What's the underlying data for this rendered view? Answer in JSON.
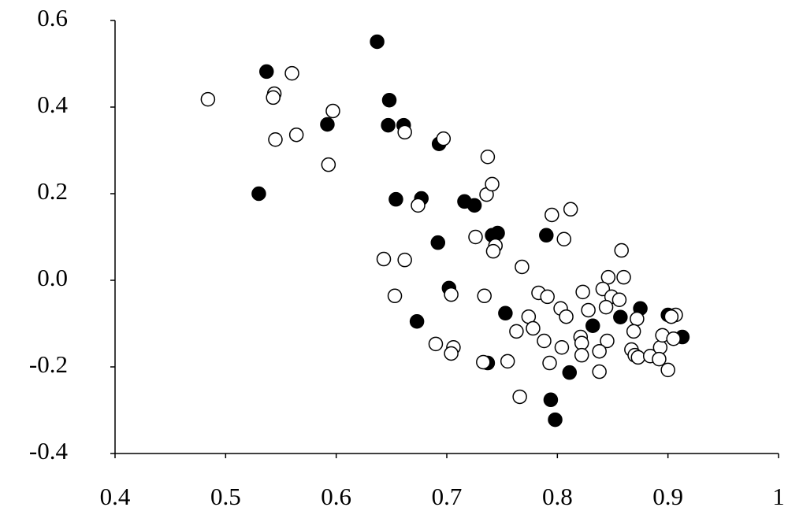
{
  "chart_data": {
    "type": "scatter",
    "xlim": [
      0.4,
      1
    ],
    "ylim": [
      -0.4,
      0.6
    ],
    "xticks": [
      0.4,
      0.5,
      0.6,
      0.7,
      0.8,
      0.9,
      1
    ],
    "yticks": [
      -0.4,
      -0.2,
      {
        "value": 0,
        "label": "0.0"
      },
      0.2,
      0.4,
      0.6
    ],
    "grid": false,
    "series": [
      {
        "color": "#000000",
        "filled": true,
        "x": [
          0.637,
          0.537,
          0.648,
          0.592,
          0.647,
          0.661,
          0.693,
          0.53,
          0.654,
          0.677,
          0.716,
          0.725,
          0.746,
          0.741,
          0.79,
          0.692,
          0.702,
          0.673,
          0.753,
          0.832,
          0.875,
          0.857,
          0.9,
          0.913,
          0.737,
          0.811,
          0.794,
          0.798
        ],
        "y": [
          0.551,
          0.482,
          0.416,
          0.36,
          0.358,
          0.358,
          0.315,
          0.2,
          0.187,
          0.189,
          0.182,
          0.173,
          0.109,
          0.104,
          0.104,
          0.087,
          -0.018,
          -0.095,
          -0.076,
          -0.105,
          -0.065,
          -0.085,
          -0.08,
          -0.131,
          -0.191,
          -0.213,
          -0.276,
          -0.322
        ]
      },
      {
        "color": "#000000",
        "filled": false,
        "x": [
          0.484,
          0.56,
          0.544,
          0.543,
          0.545,
          0.564,
          0.597,
          0.593,
          0.662,
          0.697,
          0.737,
          0.736,
          0.741,
          0.674,
          0.795,
          0.812,
          0.726,
          0.744,
          0.742,
          0.806,
          0.643,
          0.662,
          0.768,
          0.858,
          0.846,
          0.86,
          0.653,
          0.704,
          0.734,
          0.783,
          0.791,
          0.823,
          0.841,
          0.849,
          0.856,
          0.803,
          0.808,
          0.828,
          0.844,
          0.872,
          0.907,
          0.903,
          0.774,
          0.778,
          0.763,
          0.788,
          0.821,
          0.822,
          0.804,
          0.845,
          0.822,
          0.838,
          0.867,
          0.869,
          0.87,
          0.873,
          0.884,
          0.893,
          0.895,
          0.892,
          0.9,
          0.905,
          0.69,
          0.706,
          0.704,
          0.733,
          0.755,
          0.793,
          0.838,
          0.766
        ],
        "y": [
          0.418,
          0.478,
          0.431,
          0.422,
          0.325,
          0.336,
          0.391,
          0.267,
          0.342,
          0.327,
          0.285,
          0.198,
          0.222,
          0.173,
          0.151,
          0.164,
          0.1,
          0.08,
          0.067,
          0.095,
          0.049,
          0.047,
          0.031,
          0.069,
          0.007,
          0.007,
          -0.036,
          -0.033,
          -0.036,
          -0.029,
          -0.038,
          -0.027,
          -0.02,
          -0.038,
          -0.045,
          -0.065,
          -0.084,
          -0.069,
          -0.062,
          -0.089,
          -0.08,
          -0.084,
          -0.084,
          -0.111,
          -0.118,
          -0.14,
          -0.131,
          -0.145,
          -0.155,
          -0.14,
          -0.173,
          -0.164,
          -0.16,
          -0.118,
          -0.173,
          -0.178,
          -0.175,
          -0.155,
          -0.127,
          -0.182,
          -0.207,
          -0.135,
          -0.147,
          -0.155,
          -0.169,
          -0.189,
          -0.187,
          -0.191,
          -0.211,
          -0.269
        ]
      }
    ]
  }
}
